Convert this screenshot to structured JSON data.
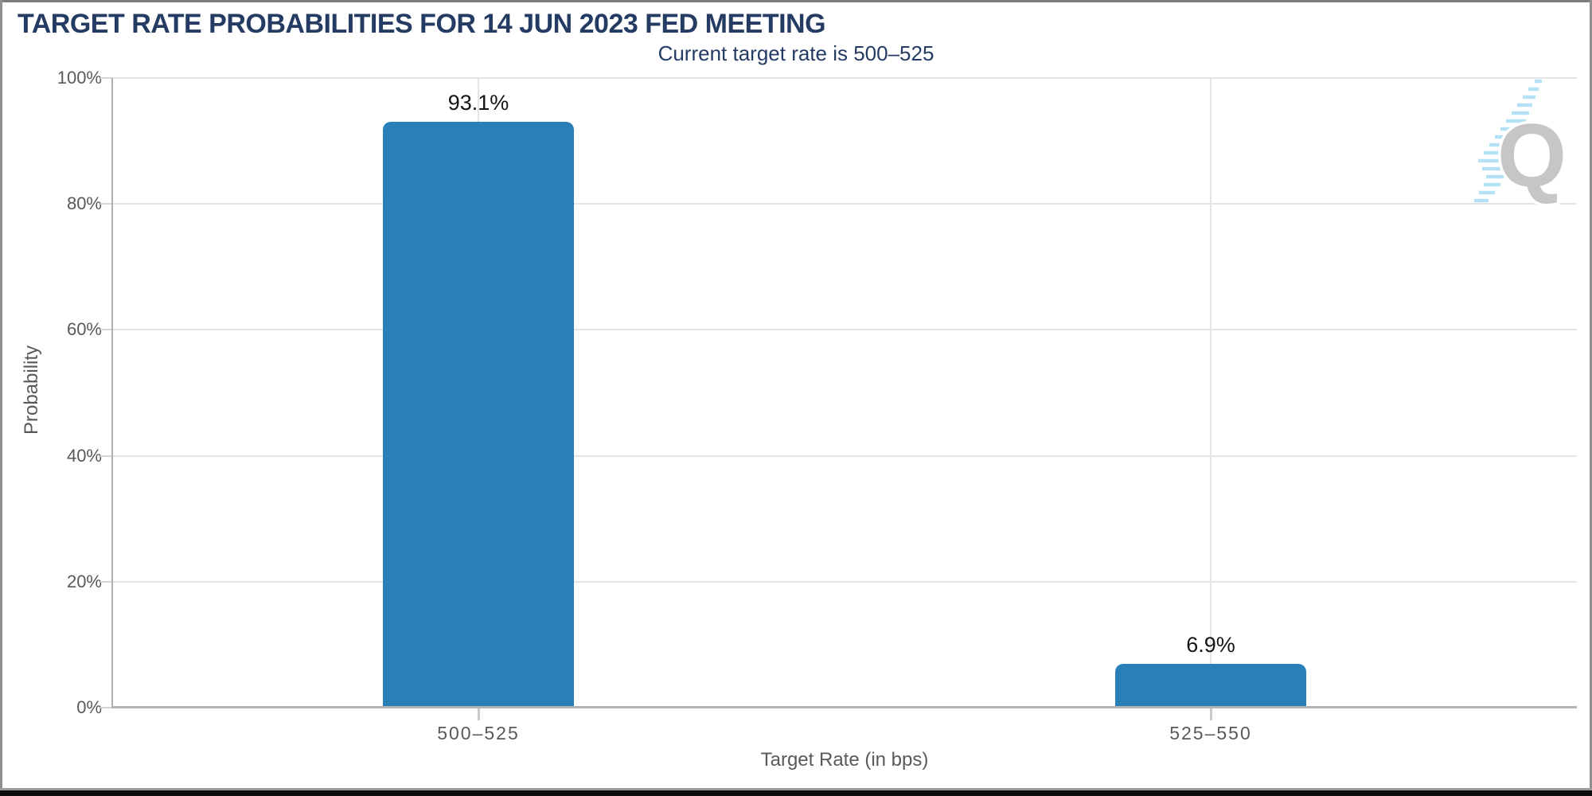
{
  "chart_data": {
    "type": "bar",
    "title": "TARGET RATE PROBABILITIES FOR 14 JUN 2023 FED MEETING",
    "subtitle": "Current target rate is 500–525",
    "categories": [
      "500–525",
      "525–550"
    ],
    "values": [
      93.1,
      6.9
    ],
    "value_labels": [
      "93.1%",
      "6.9%"
    ],
    "xlabel": "Target Rate (in bps)",
    "ylabel": "Probability",
    "ylim": [
      0,
      100
    ],
    "ytick_labels": [
      "0%",
      "20%",
      "40%",
      "60%",
      "80%",
      "100%"
    ],
    "bar_color": "#2980b9",
    "grid": "horizontal gridlines every 20% plus vertical gridline at each category center",
    "legend": "none"
  },
  "colors": {
    "title_navy": "#243b63",
    "axis_text_gray": "#595959",
    "gridline": "#e4e4e4",
    "axis_line": "#b3b3b3",
    "bar_blue": "#2980b9",
    "watermark_gray": "#c6c6c6",
    "watermark_blue": "#b5e1f6"
  },
  "watermark": {
    "letter": "Q"
  }
}
